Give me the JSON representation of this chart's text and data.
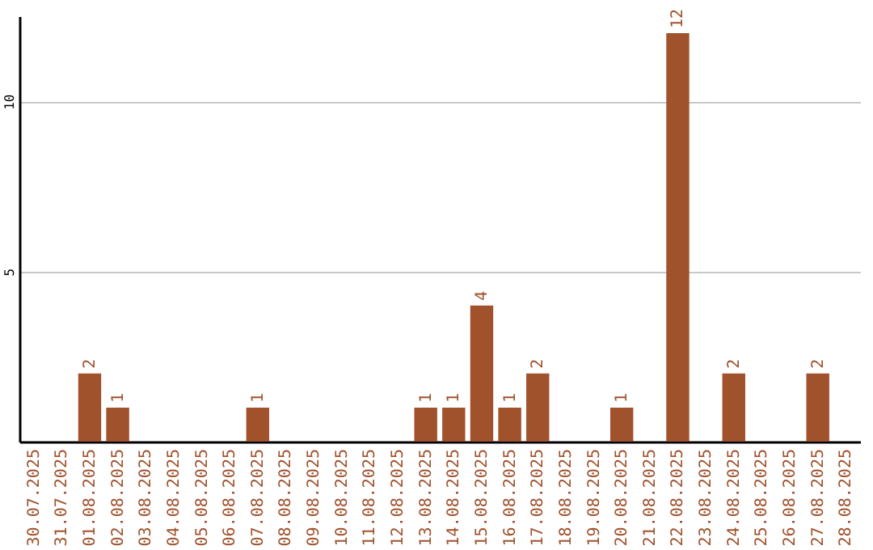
{
  "chart_data": {
    "type": "bar",
    "categories": [
      "30.07.2025",
      "31.07.2025",
      "01.08.2025",
      "02.08.2025",
      "03.08.2025",
      "04.08.2025",
      "05.08.2025",
      "06.08.2025",
      "07.08.2025",
      "08.08.2025",
      "09.08.2025",
      "10.08.2025",
      "11.08.2025",
      "12.08.2025",
      "13.08.2025",
      "14.08.2025",
      "15.08.2025",
      "16.08.2025",
      "17.08.2025",
      "18.08.2025",
      "19.08.2025",
      "20.08.2025",
      "21.08.2025",
      "22.08.2025",
      "23.08.2025",
      "24.08.2025",
      "25.08.2025",
      "26.08.2025",
      "27.08.2025",
      "28.08.2025"
    ],
    "values": [
      0,
      0,
      2,
      1,
      0,
      0,
      0,
      0,
      1,
      0,
      0,
      0,
      0,
      0,
      1,
      1,
      4,
      1,
      2,
      0,
      0,
      1,
      0,
      12,
      0,
      2,
      0,
      0,
      2,
      0
    ],
    "value_labels": [
      null,
      null,
      "2",
      "1",
      null,
      null,
      null,
      null,
      "1",
      null,
      null,
      null,
      null,
      null,
      "1",
      "1",
      "4",
      "1",
      "2",
      null,
      null,
      "1",
      null,
      "12",
      null,
      "2",
      null,
      null,
      "2",
      null
    ],
    "color": "#a0522d",
    "ylim": [
      0,
      12.5
    ],
    "yticks": [
      5,
      10
    ],
    "grid": "y"
  }
}
